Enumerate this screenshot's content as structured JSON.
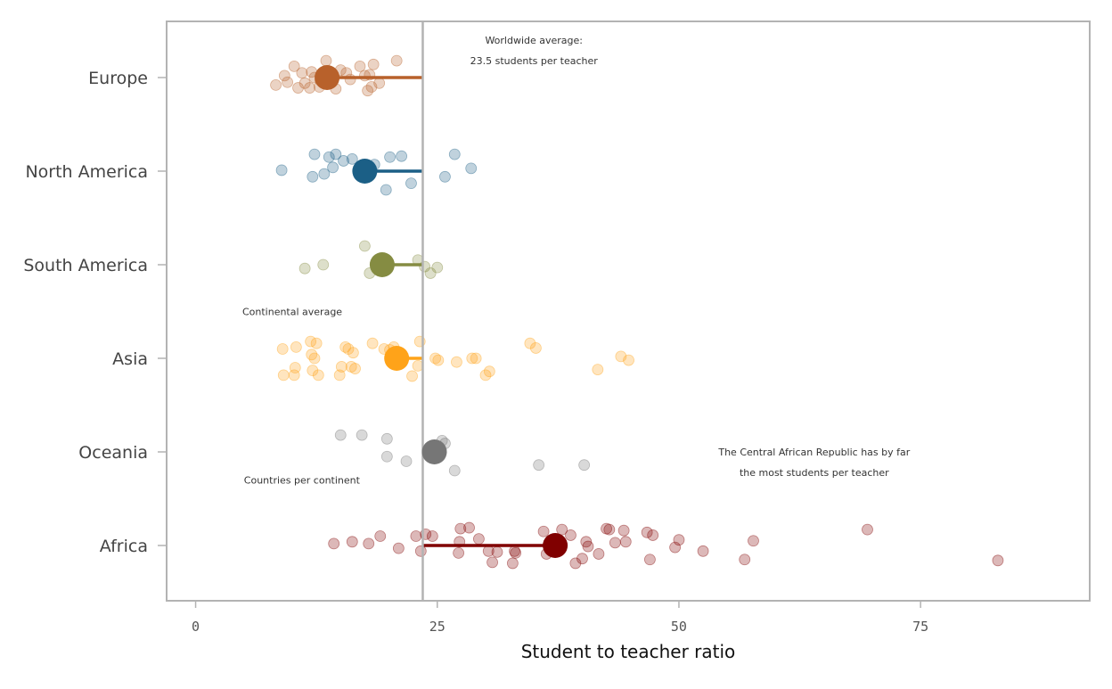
{
  "chart_data": {
    "type": "scatter",
    "title": "",
    "xlabel": "Student to teacher ratio",
    "ylabel": "",
    "xlim": [
      -3,
      92.5
    ],
    "x_ticks": [
      0,
      25,
      50,
      75
    ],
    "grid": false,
    "worldwide_average": 23.5,
    "categories": [
      "Europe",
      "North America",
      "South America",
      "Asia",
      "Oceania",
      "Africa"
    ],
    "series": [
      {
        "category": "Europe",
        "color": "#b8612b",
        "average": 13.6,
        "countries": [
          [
            8.3,
            -0.08
          ],
          [
            9.2,
            0.02
          ],
          [
            9.5,
            -0.05
          ],
          [
            10.2,
            0.12
          ],
          [
            11.0,
            0.05
          ],
          [
            11.3,
            -0.06
          ],
          [
            11.8,
            -0.11
          ],
          [
            12.0,
            0.06
          ],
          [
            12.3,
            0.0
          ],
          [
            12.8,
            -0.1
          ],
          [
            13.2,
            0.04
          ],
          [
            13.5,
            0.18
          ],
          [
            13.8,
            0.02
          ],
          [
            14.5,
            -0.12
          ],
          [
            15.0,
            0.08
          ],
          [
            16.0,
            -0.02
          ],
          [
            17.0,
            0.12
          ],
          [
            17.5,
            0.02
          ],
          [
            17.8,
            -0.14
          ],
          [
            18.2,
            -0.1
          ],
          [
            18.4,
            0.14
          ],
          [
            19.0,
            -0.06
          ],
          [
            20.8,
            0.18
          ],
          [
            10.6,
            -0.11
          ],
          [
            12.9,
            -0.03
          ],
          [
            15.6,
            0.05
          ],
          [
            18.0,
            0.03
          ]
        ]
      },
      {
        "category": "North America",
        "color": "#1b5f86",
        "average": 17.5,
        "countries": [
          [
            8.9,
            0.01
          ],
          [
            12.1,
            -0.06
          ],
          [
            12.3,
            0.18
          ],
          [
            13.3,
            -0.03
          ],
          [
            13.8,
            0.15
          ],
          [
            14.2,
            0.04
          ],
          [
            14.5,
            0.18
          ],
          [
            15.3,
            0.11
          ],
          [
            16.2,
            0.13
          ],
          [
            18.5,
            0.07
          ],
          [
            19.7,
            -0.2
          ],
          [
            20.1,
            0.15
          ],
          [
            21.3,
            0.16
          ],
          [
            22.3,
            -0.13
          ],
          [
            25.8,
            -0.06
          ],
          [
            26.8,
            0.18
          ],
          [
            28.5,
            0.03
          ]
        ]
      },
      {
        "category": "South America",
        "color": "#858c42",
        "average": 19.3,
        "countries": [
          [
            11.3,
            -0.04
          ],
          [
            13.2,
            0.0
          ],
          [
            17.5,
            0.2
          ],
          [
            18.0,
            -0.09
          ],
          [
            19.5,
            0.05
          ],
          [
            23.0,
            0.05
          ],
          [
            23.7,
            -0.02
          ],
          [
            24.3,
            -0.09
          ],
          [
            25.0,
            -0.03
          ]
        ]
      },
      {
        "category": "Asia",
        "color": "#ffa319",
        "average": 20.8,
        "countries": [
          [
            9.0,
            0.1
          ],
          [
            9.1,
            -0.18
          ],
          [
            10.2,
            -0.18
          ],
          [
            10.3,
            -0.1
          ],
          [
            10.4,
            0.12
          ],
          [
            11.9,
            0.18
          ],
          [
            12.0,
            0.04
          ],
          [
            12.1,
            -0.13
          ],
          [
            12.3,
            0.0
          ],
          [
            12.5,
            0.16
          ],
          [
            12.7,
            -0.18
          ],
          [
            14.9,
            -0.18
          ],
          [
            15.1,
            -0.09
          ],
          [
            15.5,
            0.12
          ],
          [
            15.8,
            0.1
          ],
          [
            16.1,
            -0.09
          ],
          [
            16.3,
            0.06
          ],
          [
            16.5,
            -0.11
          ],
          [
            18.3,
            0.16
          ],
          [
            19.5,
            0.1
          ],
          [
            20.1,
            0.09
          ],
          [
            20.5,
            0.12
          ],
          [
            21.0,
            -0.06
          ],
          [
            22.4,
            -0.19
          ],
          [
            23.0,
            -0.08
          ],
          [
            23.2,
            0.18
          ],
          [
            24.8,
            0.0
          ],
          [
            25.1,
            -0.02
          ],
          [
            27.0,
            -0.04
          ],
          [
            28.6,
            0.0
          ],
          [
            29.0,
            0.0
          ],
          [
            30.0,
            -0.18
          ],
          [
            30.4,
            -0.14
          ],
          [
            34.6,
            0.16
          ],
          [
            35.2,
            0.11
          ],
          [
            41.6,
            -0.12
          ],
          [
            44.0,
            0.02
          ],
          [
            44.8,
            -0.02
          ]
        ]
      },
      {
        "category": "Oceania",
        "color": "#767676",
        "average": 24.7,
        "countries": [
          [
            15.0,
            0.18
          ],
          [
            17.2,
            0.18
          ],
          [
            19.8,
            0.14
          ],
          [
            19.8,
            -0.05
          ],
          [
            21.8,
            -0.1
          ],
          [
            25.5,
            0.12
          ],
          [
            25.8,
            0.09
          ],
          [
            26.8,
            -0.2
          ],
          [
            35.5,
            -0.14
          ],
          [
            40.2,
            -0.14
          ]
        ]
      },
      {
        "category": "Africa",
        "color": "#800000",
        "average": 37.2,
        "countries": [
          [
            14.3,
            0.02
          ],
          [
            16.2,
            0.04
          ],
          [
            17.9,
            0.02
          ],
          [
            19.1,
            0.1
          ],
          [
            21.0,
            -0.03
          ],
          [
            22.8,
            0.1
          ],
          [
            23.3,
            -0.06
          ],
          [
            23.8,
            0.12
          ],
          [
            24.5,
            0.1
          ],
          [
            27.2,
            -0.08
          ],
          [
            27.3,
            0.04
          ],
          [
            27.4,
            0.18
          ],
          [
            28.3,
            0.19
          ],
          [
            29.3,
            0.07
          ],
          [
            30.3,
            -0.06
          ],
          [
            30.7,
            -0.18
          ],
          [
            31.2,
            -0.07
          ],
          [
            32.8,
            -0.19
          ],
          [
            33.0,
            -0.06
          ],
          [
            33.1,
            -0.08
          ],
          [
            36.0,
            0.15
          ],
          [
            36.3,
            -0.09
          ],
          [
            37.9,
            0.17
          ],
          [
            38.8,
            0.11
          ],
          [
            39.3,
            -0.19
          ],
          [
            40.0,
            -0.14
          ],
          [
            40.4,
            0.04
          ],
          [
            40.6,
            -0.01
          ],
          [
            41.7,
            -0.09
          ],
          [
            42.5,
            0.18
          ],
          [
            42.8,
            0.17
          ],
          [
            43.4,
            0.03
          ],
          [
            44.3,
            0.16
          ],
          [
            44.5,
            0.04
          ],
          [
            46.7,
            0.14
          ],
          [
            47.0,
            -0.15
          ],
          [
            47.3,
            0.11
          ],
          [
            49.6,
            -0.02
          ],
          [
            50.0,
            0.06
          ],
          [
            52.5,
            -0.06
          ],
          [
            56.8,
            -0.15
          ],
          [
            57.7,
            0.05
          ],
          [
            69.5,
            0.17
          ],
          [
            83.0,
            -0.16
          ]
        ]
      }
    ],
    "annotations": [
      {
        "lines": [
          "Worldwide average:",
          "23.5 students per teacher"
        ],
        "x": 35,
        "category": "Europe",
        "dy": [
          0.4,
          0.18
        ]
      },
      {
        "lines": [
          "Continental average"
        ],
        "x": 10,
        "category": "South America",
        "dy": [
          -0.5
        ]
      },
      {
        "lines": [
          "Countries per continent"
        ],
        "x": 11,
        "category": "Oceania",
        "dy": [
          -0.3
        ]
      },
      {
        "lines": [
          "The Central African Republic has by far",
          "the most students per teacher"
        ],
        "x": 64,
        "category": "Oceania",
        "dy": [
          0.0,
          -0.22
        ]
      }
    ]
  }
}
